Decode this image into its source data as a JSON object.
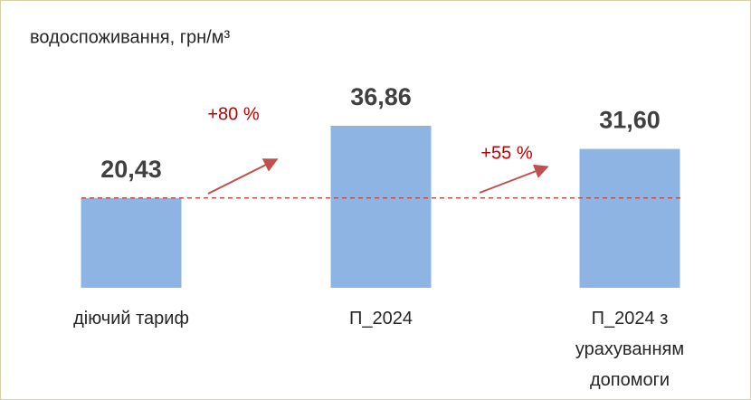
{
  "chart_data": {
    "type": "bar",
    "title": "водоспоживання, грн/м³",
    "categories": [
      "діючий тариф",
      "П_2024",
      "П_2024 з урахуванням допомоги"
    ],
    "values": [
      20.43,
      36.86,
      31.6
    ],
    "value_labels": [
      "20,43",
      "36,86",
      "31,60"
    ],
    "color": "#8eb4e3",
    "annotations": [
      "+80 %",
      "+55 %"
    ],
    "annotation_color": "#c00000",
    "reference_line_color": "#c0504d"
  }
}
